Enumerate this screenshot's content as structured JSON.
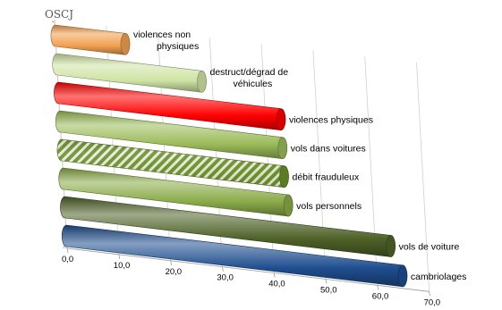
{
  "logo": {
    "text": "OSCJ"
  },
  "chart_data": {
    "type": "bar",
    "orientation": "horizontal",
    "style": "3d-cylinder",
    "categories": [
      "violences non physiques",
      "destruct/dégrad de véhicules",
      "violences physiques",
      "vols dans voitures",
      "débit frauduleux",
      "vols personnels",
      "vols de voiture",
      "cambriolages"
    ],
    "label_lines": [
      [
        "violences non",
        "physiques"
      ],
      [
        "destruct/dégrad de",
        "véhicules"
      ],
      [
        "violences physiques"
      ],
      [
        "vols dans voitures"
      ],
      [
        "débit frauduleux"
      ],
      [
        "vols personnels"
      ],
      [
        "vols de voiture"
      ],
      [
        "cambriolages"
      ]
    ],
    "values": [
      13.5,
      28.0,
      43.0,
      43.0,
      43.0,
      43.5,
      63.0,
      65.0
    ],
    "colors": [
      "#f0a050",
      "#cfe3a4",
      "#ff0000",
      "#9bbb59",
      "#6d8f2c",
      "#8aab49",
      "#4f6228",
      "#1f4e8f"
    ],
    "patterns": [
      "solid",
      "solid",
      "solid",
      "solid",
      "hatched",
      "solid",
      "solid",
      "solid"
    ],
    "x_ticks": [
      "0,0",
      "10,0",
      "20,0",
      "30,0",
      "40,0",
      "50,0",
      "60,0",
      "70,0"
    ],
    "xlim": [
      0,
      70
    ],
    "grid": true,
    "legend": "none"
  }
}
